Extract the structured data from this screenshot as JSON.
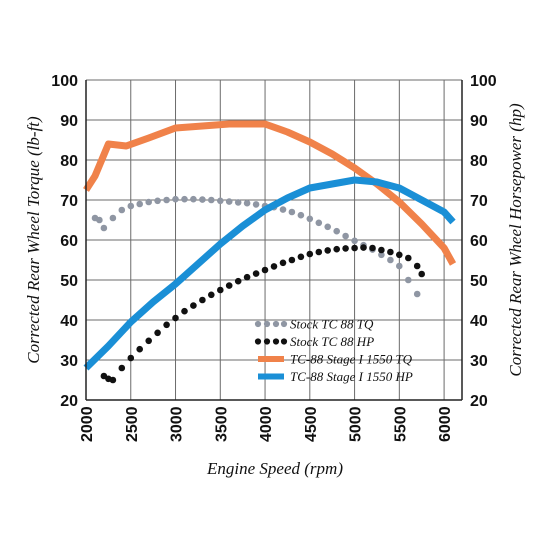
{
  "chart_data": {
    "type": "line",
    "xlabel": "Engine Speed (rpm)",
    "ylabel_left": "Corrected Rear Wheel Torque (lb-ft)",
    "ylabel_right": "Corrected Rear Wheel Horsepower (hp)",
    "xlim": [
      2000,
      6200
    ],
    "ylim": [
      20,
      100
    ],
    "xticks": [
      2000,
      2500,
      3000,
      3500,
      4000,
      4500,
      5000,
      5500,
      6000
    ],
    "yticks": [
      20,
      30,
      40,
      50,
      60,
      70,
      80,
      90,
      100
    ],
    "grid": true,
    "legend_position": "bottom-right",
    "series": [
      {
        "name": "Stock TC 88 TQ",
        "style": "dotted",
        "color": "#8f96a3",
        "x": [
          2100,
          2150,
          2200,
          2300,
          2400,
          2500,
          2600,
          2700,
          2800,
          2900,
          3000,
          3100,
          3200,
          3300,
          3400,
          3500,
          3600,
          3700,
          3800,
          3900,
          4000,
          4100,
          4200,
          4300,
          4400,
          4500,
          4600,
          4700,
          4800,
          4900,
          5000,
          5100,
          5200,
          5300,
          5400,
          5500,
          5600,
          5700
        ],
        "y": [
          65.5,
          65,
          63,
          65.5,
          67.5,
          68.5,
          69,
          69.5,
          69.8,
          70,
          70.2,
          70.2,
          70.2,
          70.1,
          70,
          69.8,
          69.6,
          69.4,
          69.2,
          68.9,
          68.5,
          68.2,
          67.6,
          67,
          66.2,
          65.3,
          64.3,
          63.3,
          62.2,
          61,
          59.8,
          58.7,
          57.6,
          56.3,
          55,
          53.5,
          50,
          46.5
        ]
      },
      {
        "name": "Stock TC 88 HP",
        "style": "dotted",
        "color": "#111111",
        "x": [
          2200,
          2250,
          2300,
          2400,
          2500,
          2600,
          2700,
          2800,
          2900,
          3000,
          3100,
          3200,
          3300,
          3400,
          3500,
          3600,
          3700,
          3800,
          3900,
          4000,
          4100,
          4200,
          4300,
          4400,
          4500,
          4600,
          4700,
          4800,
          4900,
          5000,
          5100,
          5200,
          5300,
          5400,
          5500,
          5600,
          5700,
          5750
        ],
        "y": [
          26,
          25.3,
          25,
          28,
          30.5,
          32.7,
          34.8,
          36.8,
          38.8,
          40.5,
          42.2,
          43.6,
          45,
          46.3,
          47.5,
          48.6,
          49.7,
          50.7,
          51.6,
          52.5,
          53.4,
          54.3,
          55,
          55.8,
          56.5,
          57,
          57.4,
          57.7,
          57.9,
          58,
          58.1,
          58,
          57.5,
          57,
          56.3,
          55.5,
          53.5,
          51.5
        ]
      },
      {
        "name": "TC-88 Stage I 1550 TQ",
        "style": "solid",
        "color": "#f0824a",
        "x": [
          2000,
          2100,
          2250,
          2450,
          2700,
          3000,
          3300,
          3600,
          3800,
          4000,
          4250,
          4500,
          4750,
          5000,
          5250,
          5500,
          5750,
          6000,
          6100
        ],
        "y": [
          72.5,
          76,
          84,
          83.5,
          85.5,
          88,
          88.5,
          89,
          89,
          89,
          87,
          84.5,
          81.5,
          78,
          74,
          69.5,
          64,
          58,
          54
        ]
      },
      {
        "name": "TC-88 Stage I 1550 HP",
        "style": "solid",
        "color": "#1a8fd6",
        "x": [
          2000,
          2250,
          2500,
          2750,
          3000,
          3250,
          3500,
          3750,
          4000,
          4250,
          4500,
          4750,
          5000,
          5250,
          5500,
          5750,
          6000,
          6100
        ],
        "y": [
          28,
          33.5,
          39.5,
          44.5,
          49,
          54,
          59,
          63.5,
          67.5,
          70.5,
          73,
          74,
          75,
          74.5,
          73,
          70,
          67,
          64.5
        ]
      }
    ]
  }
}
